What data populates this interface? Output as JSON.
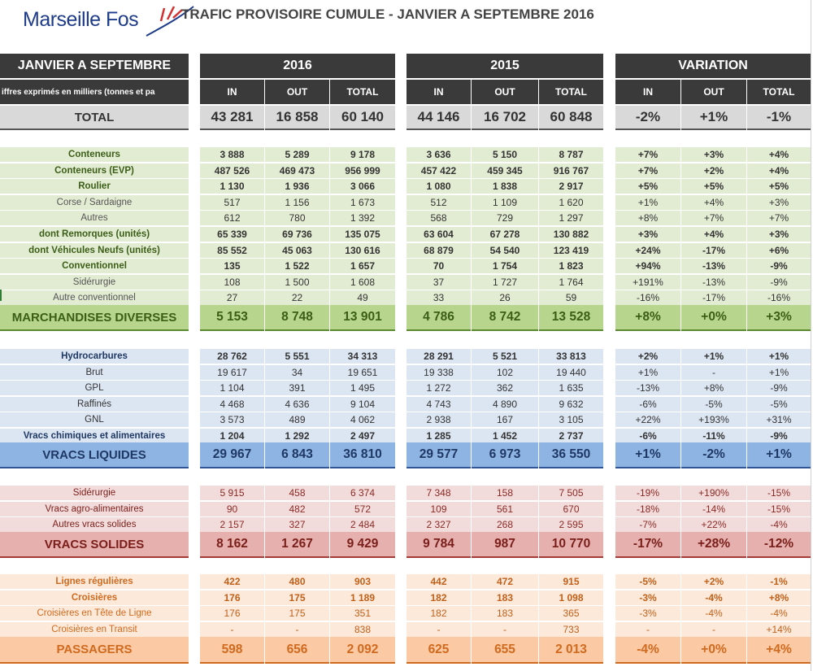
{
  "header": {
    "logo_text": "Marseille Fos",
    "title": "TRAFIC PROVISOIRE CUMULE - JANVIER A SEPTEMBRE 2016"
  },
  "table_header": {
    "period_label": "JANVIER A SEPTEMBRE",
    "units_note": "iffres exprimés en milliers (tonnes et pa",
    "groups": [
      "2016",
      "2015",
      "VARIATION"
    ],
    "columns": [
      "IN",
      "OUT",
      "TOTAL"
    ]
  },
  "total_row": {
    "label": "TOTAL",
    "values": [
      "43 281",
      "16 858",
      "60 140",
      "44 146",
      "16 702",
      "60 848",
      "-2%",
      "+1%",
      "-1%"
    ]
  },
  "sections": [
    {
      "key": "marchandises",
      "colors": {
        "row": "#e2ecd2",
        "summary": "#b7d58d",
        "border": "#5a8a2e",
        "label_main": "#3b5e17",
        "label_sub": "#555555",
        "num": "#333333"
      },
      "rows": [
        {
          "label": "Conteneurs",
          "level": "main",
          "values": [
            "3 888",
            "5 289",
            "9 178",
            "3 636",
            "5 150",
            "8 787",
            "+7%",
            "+3%",
            "+4%"
          ]
        },
        {
          "label": "Conteneurs (EVP)",
          "level": "main",
          "values": [
            "487 526",
            "469 473",
            "956 999",
            "457 422",
            "459 345",
            "916 767",
            "+7%",
            "+2%",
            "+4%"
          ]
        },
        {
          "label": "Roulier",
          "level": "main",
          "values": [
            "1 130",
            "1 936",
            "3 066",
            "1 080",
            "1 838",
            "2 917",
            "+5%",
            "+5%",
            "+5%"
          ]
        },
        {
          "label": "Corse / Sardaigne",
          "level": "sub",
          "values": [
            "517",
            "1 156",
            "1 673",
            "512",
            "1 109",
            "1 620",
            "+1%",
            "+4%",
            "+3%"
          ]
        },
        {
          "label": "Autres",
          "level": "sub",
          "values": [
            "612",
            "780",
            "1 392",
            "568",
            "729",
            "1 297",
            "+8%",
            "+7%",
            "+7%"
          ]
        },
        {
          "label": "dont Remorques (unités)",
          "level": "main",
          "values": [
            "65 339",
            "69 736",
            "135 075",
            "63 604",
            "67 278",
            "130 882",
            "+3%",
            "+4%",
            "+3%"
          ]
        },
        {
          "label": "dont Véhicules Neufs (unités)",
          "level": "main",
          "values": [
            "85 552",
            "45 063",
            "130 616",
            "68 879",
            "54 540",
            "123 419",
            "+24%",
            "-17%",
            "+6%"
          ]
        },
        {
          "label": "Conventionnel",
          "level": "main",
          "values": [
            "135",
            "1 522",
            "1 657",
            "70",
            "1 754",
            "1 823",
            "+94%",
            "-13%",
            "-9%"
          ]
        },
        {
          "label": "Sidérurgie",
          "level": "sub",
          "values": [
            "108",
            "1 500",
            "1 608",
            "37",
            "1 727",
            "1 764",
            "+191%",
            "-13%",
            "-9%"
          ]
        },
        {
          "label": "Autre conventionnel",
          "level": "sub",
          "values": [
            "27",
            "22",
            "49",
            "33",
            "26",
            "59",
            "-16%",
            "-17%",
            "-16%"
          ]
        }
      ],
      "summary": {
        "label": "MARCHANDISES DIVERSES",
        "values": [
          "5 153",
          "8 748",
          "13 901",
          "4 786",
          "8 742",
          "13 528",
          "+8%",
          "+0%",
          "+3%"
        ]
      }
    },
    {
      "key": "vracs_liquides",
      "colors": {
        "row": "#dce6f2",
        "summary": "#8eb4e3",
        "border": "#2f5597",
        "label_main": "#1f3864",
        "label_sub": "#333333",
        "num": "#333333"
      },
      "rows": [
        {
          "label": "Hydrocarbures",
          "level": "main",
          "values": [
            "28 762",
            "5 551",
            "34 313",
            "28 291",
            "5 521",
            "33 813",
            "+2%",
            "+1%",
            "+1%"
          ]
        },
        {
          "label": "Brut",
          "level": "sub",
          "values": [
            "19 617",
            "34",
            "19 651",
            "19 338",
            "102",
            "19 440",
            "+1%",
            "-",
            "+1%"
          ]
        },
        {
          "label": "GPL",
          "level": "sub",
          "values": [
            "1 104",
            "391",
            "1 495",
            "1 272",
            "362",
            "1 635",
            "-13%",
            "+8%",
            "-9%"
          ]
        },
        {
          "label": "Raffinés",
          "level": "sub",
          "values": [
            "4 468",
            "4 636",
            "9 104",
            "4 743",
            "4 890",
            "9 632",
            "-6%",
            "-5%",
            "-5%"
          ]
        },
        {
          "label": "GNL",
          "level": "sub",
          "values": [
            "3 573",
            "489",
            "4 062",
            "2 938",
            "167",
            "3 105",
            "+22%",
            "+193%",
            "+31%"
          ]
        },
        {
          "label": "Vracs chimiques et alimentaires",
          "level": "main",
          "values": [
            "1 204",
            "1 292",
            "2 497",
            "1 285",
            "1 452",
            "2 737",
            "-6%",
            "-11%",
            "-9%"
          ]
        }
      ],
      "summary": {
        "label": "VRACS LIQUIDES",
        "values": [
          "29 967",
          "6 843",
          "36 810",
          "29 577",
          "6 973",
          "36 550",
          "+1%",
          "-2%",
          "+1%"
        ]
      }
    },
    {
      "key": "vracs_solides",
      "colors": {
        "row": "#f2dcdb",
        "summary": "#e6b0ae",
        "border": "#a33a36",
        "label_main": "#7a1e1a",
        "label_sub": "#7a1e1a",
        "num": "#8a2a25"
      },
      "rows": [
        {
          "label": "Sidérurgie",
          "level": "sub",
          "values": [
            "5 915",
            "458",
            "6 374",
            "7 348",
            "158",
            "7 505",
            "-19%",
            "+190%",
            "-15%"
          ]
        },
        {
          "label": "Vracs agro-alimentaires",
          "level": "sub",
          "values": [
            "90",
            "482",
            "572",
            "109",
            "561",
            "670",
            "-18%",
            "-14%",
            "-15%"
          ]
        },
        {
          "label": "Autres vracs solides",
          "level": "sub",
          "values": [
            "2 157",
            "327",
            "2 484",
            "2 327",
            "268",
            "2 595",
            "-7%",
            "+22%",
            "-4%"
          ]
        }
      ],
      "summary": {
        "label": "VRACS SOLIDES",
        "values": [
          "8 162",
          "1 267",
          "9 429",
          "9 784",
          "987",
          "10 770",
          "-17%",
          "+28%",
          "-12%"
        ]
      }
    },
    {
      "key": "passagers",
      "colors": {
        "row": "#fde9d9",
        "summary": "#fbc9a3",
        "border": "#d06a1e",
        "label_main": "#d06a1e",
        "label_sub": "#d06a1e",
        "num": "#c0601a"
      },
      "rows": [
        {
          "label": "Lignes régulières",
          "level": "main",
          "values": [
            "422",
            "480",
            "903",
            "442",
            "472",
            "915",
            "-5%",
            "+2%",
            "-1%"
          ]
        },
        {
          "label": "Croisières",
          "level": "main",
          "values": [
            "176",
            "175",
            "1 189",
            "182",
            "183",
            "1 098",
            "-3%",
            "-4%",
            "+8%"
          ]
        },
        {
          "label": "Croisières en Tête de Ligne",
          "level": "sub",
          "values": [
            "176",
            "175",
            "351",
            "182",
            "183",
            "365",
            "-3%",
            "-4%",
            "-4%"
          ]
        },
        {
          "label": "Croisières en Transit",
          "level": "sub",
          "values": [
            "-",
            "-",
            "838",
            "-",
            "-",
            "733",
            "-",
            "-",
            "+14%"
          ]
        }
      ],
      "summary": {
        "label": "PASSAGERS",
        "values": [
          "598",
          "656",
          "2 092",
          "625",
          "655",
          "2 013",
          "-4%",
          "+0%",
          "+4%"
        ]
      }
    }
  ]
}
